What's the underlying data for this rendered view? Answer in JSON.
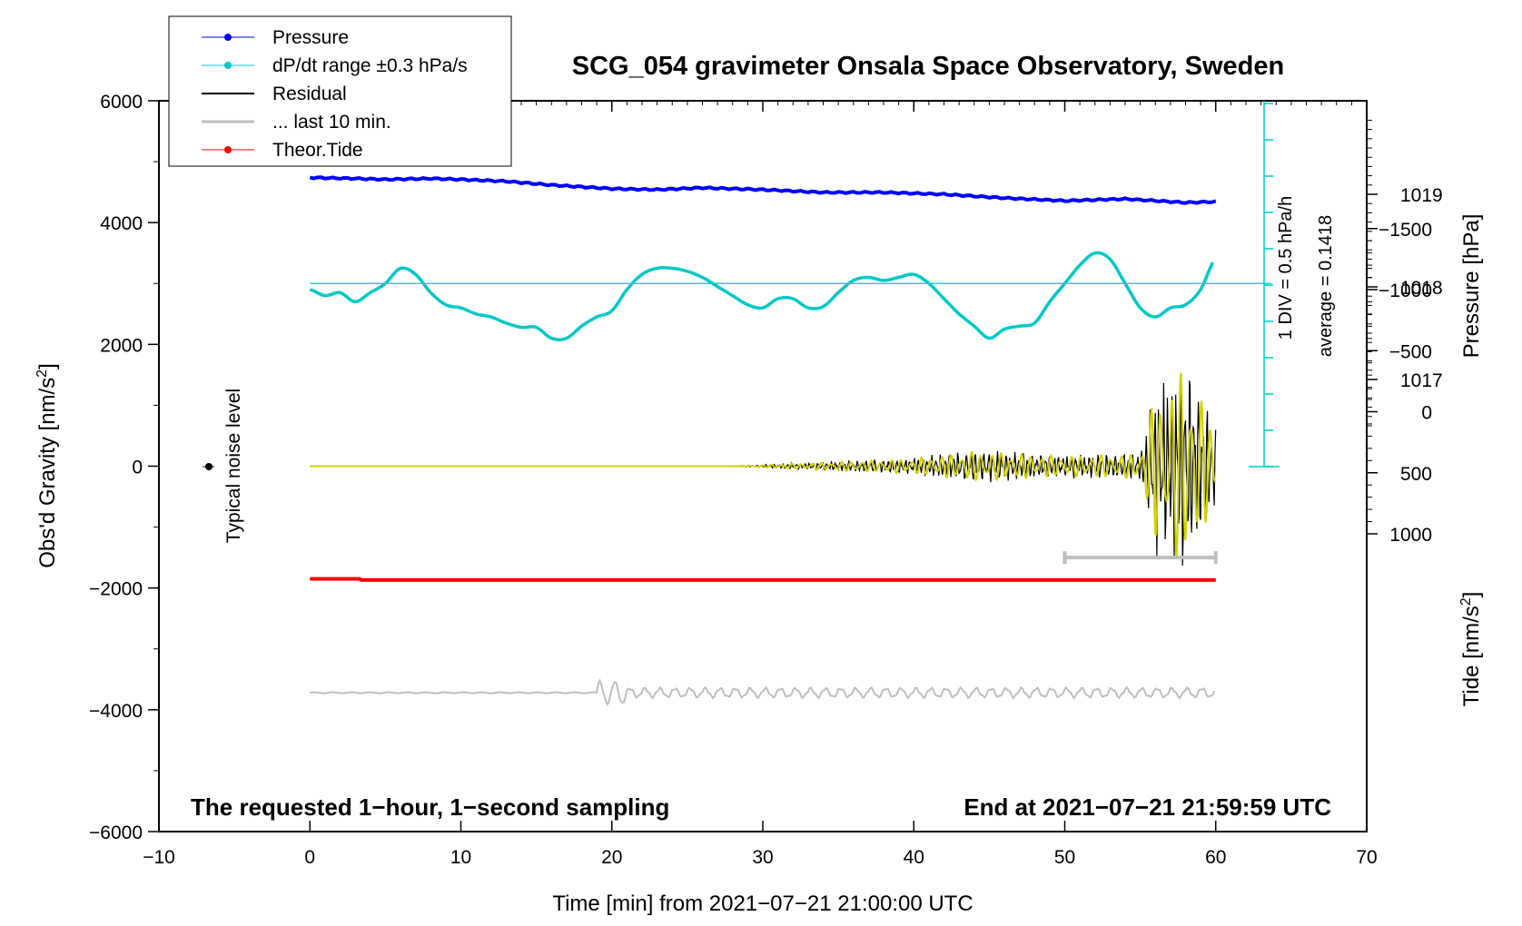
{
  "chart_data": {
    "type": "line",
    "title": "SCG_054 gravimeter Onsala Space Observatory, Sweden",
    "xlabel": "Time [min] from 2021−07−21 21:00:00 UTC",
    "ylabel_left": "Obs'd Gravity [nm/s",
    "ylabel_left_sup": "2",
    "ylabel_left_end": "]",
    "ylabel_pressure": "Pressure [hPa]",
    "ylabel_tide": "Tide [nm/s",
    "ylabel_tide_sup": "2",
    "ylabel_tide_end": "]",
    "xlim": [
      -10,
      70
    ],
    "ylim": [
      -6000,
      6000
    ],
    "x_ticks": [
      "−10",
      "0",
      "10",
      "20",
      "30",
      "40",
      "50",
      "60",
      "70"
    ],
    "y_ticks": [
      "6000",
      "4000",
      "2000",
      "0",
      "−2000",
      "−4000",
      "−6000"
    ],
    "pressure_ticks": [
      "1019",
      "1018",
      "1017"
    ],
    "tide_ticks": [
      "1000",
      "500",
      "0",
      "−500",
      "−1000",
      "−1500"
    ],
    "notes": {
      "left": "The requested 1−hour, 1−second sampling",
      "right": "End at 2021−07−21 21:59:59 UTC",
      "noise": "Typical noise level",
      "div": "1 DIV = 0.5 hPa/h",
      "average": "average = 0.1418"
    },
    "legend": [
      {
        "label": "Pressure",
        "color": "#0000ff"
      },
      {
        "label": "dP/dt range ±0.3 hPa/s",
        "color": "#00c8c8"
      },
      {
        "label": "Residual",
        "color": "#000000"
      },
      {
        "label": "... last 10 min.",
        "color": "#bebebe"
      },
      {
        "label": "Theor.Tide",
        "color": "#ff0000"
      }
    ],
    "series": [
      {
        "name": "Pressure",
        "unit": "hPa",
        "x": [
          0,
          3,
          5,
          8,
          10,
          13,
          16,
          20,
          23,
          26,
          30,
          34,
          38,
          42,
          46,
          50,
          54,
          58,
          60
        ],
        "values": [
          1019.18,
          1019.17,
          1019.16,
          1019.17,
          1019.16,
          1019.14,
          1019.1,
          1019.06,
          1019.05,
          1019.07,
          1019.05,
          1019.02,
          1019.02,
          1019.0,
          1018.96,
          1018.93,
          1018.95,
          1018.91,
          1018.92
        ]
      },
      {
        "name": "dP/dt",
        "unit": "nm/s2 plot units",
        "x": [
          0,
          1,
          2,
          3,
          4,
          5,
          6,
          7,
          8,
          9,
          10,
          11,
          12,
          13,
          14,
          15,
          16,
          17,
          18,
          19,
          20,
          21,
          22,
          23,
          24,
          25,
          26,
          27,
          28,
          29,
          30,
          31,
          32,
          33,
          34,
          35,
          36,
          37,
          38,
          39,
          40,
          41,
          42,
          43,
          44,
          45,
          46,
          47,
          48,
          49,
          50,
          51,
          52,
          53,
          54,
          55,
          56,
          57,
          58,
          59,
          60
        ],
        "values": [
          2900,
          2800,
          2850,
          2700,
          2850,
          3000,
          3250,
          3150,
          2850,
          2650,
          2600,
          2500,
          2450,
          2350,
          2280,
          2280,
          2100,
          2100,
          2300,
          2450,
          2550,
          2900,
          3150,
          3250,
          3250,
          3200,
          3100,
          2950,
          2800,
          2650,
          2600,
          2750,
          2750,
          2600,
          2620,
          2850,
          3050,
          3100,
          3050,
          3100,
          3150,
          3000,
          2750,
          2500,
          2300,
          2100,
          2250,
          2300,
          2350,
          2700,
          3000,
          3300,
          3500,
          3400,
          3000,
          2600,
          2450,
          2600,
          2650,
          2900,
          3420
        ]
      },
      {
        "name": "dP/dt reference (average)",
        "value": 3000
      },
      {
        "name": "Residual",
        "x": [
          0,
          28,
          40,
          44,
          50,
          55,
          56,
          57,
          58,
          59,
          60
        ],
        "amplitude": [
          0,
          0,
          150,
          300,
          200,
          250,
          1500,
          1700,
          2100,
          1400,
          700
        ]
      },
      {
        "name": "last 10 min.",
        "x": [
          0,
          19,
          20,
          21,
          25,
          30,
          40,
          50,
          60
        ],
        "values": [
          -3720,
          -3720,
          -3600,
          -3900,
          -3700,
          -3720,
          -3700,
          -3720,
          -3680
        ]
      },
      {
        "name": "Theor.Tide",
        "x": [
          0,
          3.3,
          3.4,
          60
        ],
        "values": [
          -1850,
          -1850,
          -1870,
          -1870
        ]
      }
    ],
    "error_bar_last10": {
      "x_start": 50,
      "x_end": 60,
      "y": -1500
    }
  }
}
